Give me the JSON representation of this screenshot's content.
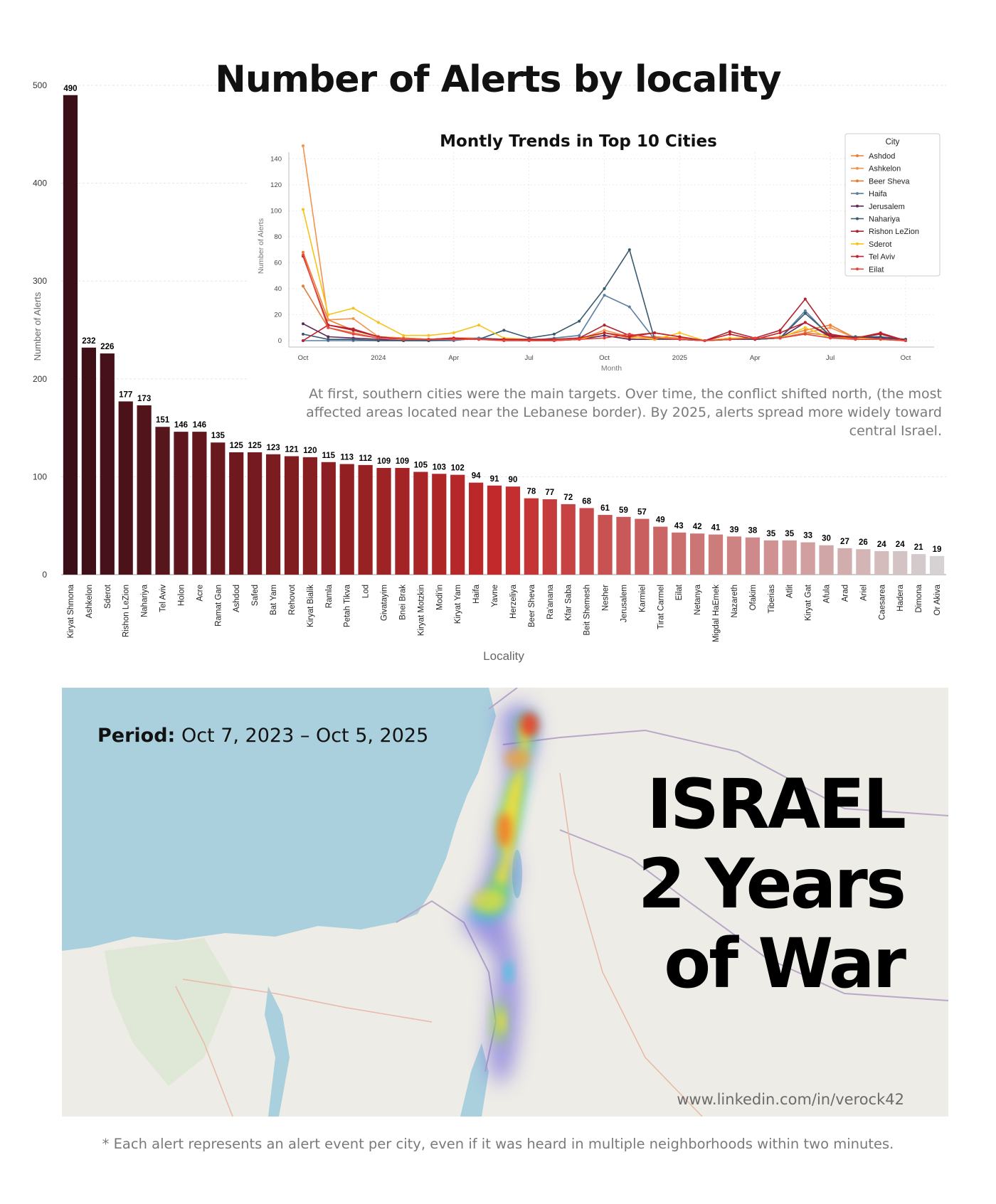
{
  "title": "Number of Alerts by locality",
  "chart_data": [
    {
      "type": "bar",
      "title": "Number of Alerts by locality",
      "xlabel": "Locality",
      "ylabel": "Number of Alerts",
      "ylim": [
        0,
        500
      ],
      "yticks": [
        "0",
        "100",
        "200",
        "300",
        "400",
        "500"
      ],
      "grid": true,
      "categories": [
        "Kiryat Shmona",
        "Ashkelon",
        "Sderot",
        "Rishon LeZion",
        "Nahariya",
        "Tel Aviv",
        "Holon",
        "Acre",
        "Ramat Gan",
        "Ashdod",
        "Safed",
        "Bat Yam",
        "Rehovot",
        "Kiryat Bialik",
        "Ramla",
        "Petah Tikva",
        "Lod",
        "Givatayim",
        "Bnei Brak",
        "Kiryat Motzkin",
        "Modi'in",
        "Kiryat Yam",
        "Haifa",
        "Yavne",
        "Herzeliya",
        "Beer Sheva",
        "Ra'anana",
        "Kfar Saba",
        "Beit Shemesh",
        "Nesher",
        "Jerusalem",
        "Karmiel",
        "Tirat Carmel",
        "Eilat",
        "Netanya",
        "Migdal HaEmek",
        "Nazareth",
        "Ofakim",
        "Tiberias",
        "Atlit",
        "Kiryat Gat",
        "Afula",
        "Arad",
        "Ariel",
        "Caesarea",
        "Hadera",
        "Dimona",
        "Or Akiva"
      ],
      "values": [
        490,
        232,
        226,
        177,
        173,
        151,
        146,
        146,
        135,
        125,
        125,
        123,
        121,
        120,
        115,
        113,
        112,
        109,
        109,
        105,
        103,
        102,
        94,
        91,
        90,
        78,
        77,
        72,
        68,
        61,
        59,
        57,
        49,
        43,
        42,
        41,
        39,
        38,
        35,
        35,
        33,
        30,
        27,
        26,
        24,
        24,
        21,
        19
      ],
      "color_start": "#3a0f18",
      "color_mid": "#c42a2a",
      "color_end": "#d6d1d2"
    },
    {
      "type": "line",
      "title": "Montly Trends in Top 10 Cities",
      "xlabel": "Month",
      "ylabel": "Number of Alerts",
      "ylim": [
        0,
        150
      ],
      "yticks": [
        "0",
        "20",
        "40",
        "60",
        "80",
        "100",
        "120",
        "140"
      ],
      "xticks": [
        "Oct",
        "2024",
        "Apr",
        "Jul",
        "Oct",
        "2025",
        "Apr",
        "Jul",
        "Oct"
      ],
      "xtick_positions": [
        0,
        3,
        6,
        9,
        12,
        15,
        18,
        21,
        24
      ],
      "grid": true,
      "legend_title": "City",
      "legend_position": "top-right",
      "x": [
        0,
        1,
        2,
        3,
        4,
        5,
        6,
        7,
        8,
        9,
        10,
        11,
        12,
        13,
        14,
        15,
        16,
        17,
        18,
        19,
        20,
        21,
        22,
        23,
        24
      ],
      "series": [
        {
          "name": "Ashdod",
          "color": "#f07d2e",
          "values": [
            68,
            16,
            8,
            3,
            2,
            1,
            2,
            2,
            1,
            1,
            1,
            1,
            6,
            2,
            3,
            2,
            0,
            2,
            1,
            3,
            8,
            12,
            2,
            2,
            1
          ]
        },
        {
          "name": "Ashkelon",
          "color": "#f4934a",
          "values": [
            150,
            16,
            17,
            3,
            2,
            1,
            2,
            2,
            1,
            1,
            1,
            1,
            8,
            3,
            2,
            2,
            0,
            1,
            1,
            2,
            6,
            10,
            2,
            1,
            0
          ]
        },
        {
          "name": "Beer Sheva",
          "color": "#e07b39",
          "values": [
            42,
            10,
            6,
            2,
            2,
            1,
            1,
            1,
            0,
            0,
            0,
            1,
            4,
            1,
            1,
            1,
            0,
            1,
            1,
            2,
            6,
            4,
            1,
            1,
            0
          ]
        },
        {
          "name": "Haifa",
          "color": "#5b7fa3",
          "values": [
            0,
            0,
            0,
            0,
            0,
            0,
            0,
            2,
            1,
            0,
            2,
            4,
            35,
            26,
            1,
            1,
            0,
            2,
            1,
            2,
            23,
            3,
            2,
            2,
            1
          ]
        },
        {
          "name": "Jerusalem",
          "color": "#5e2a5e",
          "values": [
            13,
            3,
            2,
            1,
            0,
            0,
            1,
            1,
            1,
            1,
            0,
            1,
            4,
            1,
            1,
            1,
            0,
            1,
            1,
            2,
            14,
            3,
            3,
            2,
            1
          ]
        },
        {
          "name": "Nahariya",
          "color": "#375a6e",
          "values": [
            5,
            1,
            1,
            0,
            0,
            0,
            1,
            1,
            8,
            2,
            5,
            15,
            40,
            70,
            1,
            1,
            0,
            1,
            1,
            2,
            21,
            4,
            3,
            3,
            1
          ]
        },
        {
          "name": "Rishon LeZion",
          "color": "#b0202a",
          "values": [
            65,
            12,
            8,
            3,
            1,
            1,
            2,
            1,
            1,
            1,
            1,
            2,
            12,
            4,
            6,
            3,
            0,
            7,
            2,
            8,
            32,
            5,
            2,
            5,
            0
          ]
        },
        {
          "name": "Sderot",
          "color": "#f7c21b",
          "values": [
            101,
            20,
            25,
            14,
            4,
            4,
            6,
            12,
            2,
            1,
            1,
            1,
            6,
            3,
            1,
            6,
            0,
            2,
            2,
            2,
            10,
            2,
            2,
            1,
            0
          ]
        },
        {
          "name": "Tel Aviv",
          "color": "#c0202e",
          "values": [
            0,
            12,
            9,
            3,
            1,
            1,
            2,
            1,
            1,
            1,
            1,
            2,
            6,
            3,
            6,
            3,
            0,
            5,
            1,
            6,
            14,
            4,
            2,
            6,
            0
          ]
        },
        {
          "name": "Eilat",
          "color": "#e8443c",
          "values": [
            66,
            10,
            5,
            2,
            1,
            1,
            1,
            1,
            0,
            0,
            0,
            1,
            2,
            5,
            2,
            1,
            0,
            1,
            2,
            2,
            5,
            2,
            1,
            1,
            0
          ]
        }
      ]
    }
  ],
  "annotation": "At first, southern cities were the main targets. Over time, the conflict shifted north,  (the most affected areas located near the Lebanese border). By 2025, alerts spread more widely toward central Israel.",
  "map": {
    "period_label": "Period:",
    "period_value": "Oct 7, 2023 – Oct 5, 2025",
    "title_line1": "ISRAEL",
    "title_line2": "2 Years",
    "title_line3": "of War",
    "credit": "www.linkedin.com/in/verock42",
    "sea_color": "#aacfdd",
    "land_color": "#eeece6"
  },
  "footnote": "* Each alert represents an alert event per city, even if it was heard in multiple neighborhoods within two minutes."
}
